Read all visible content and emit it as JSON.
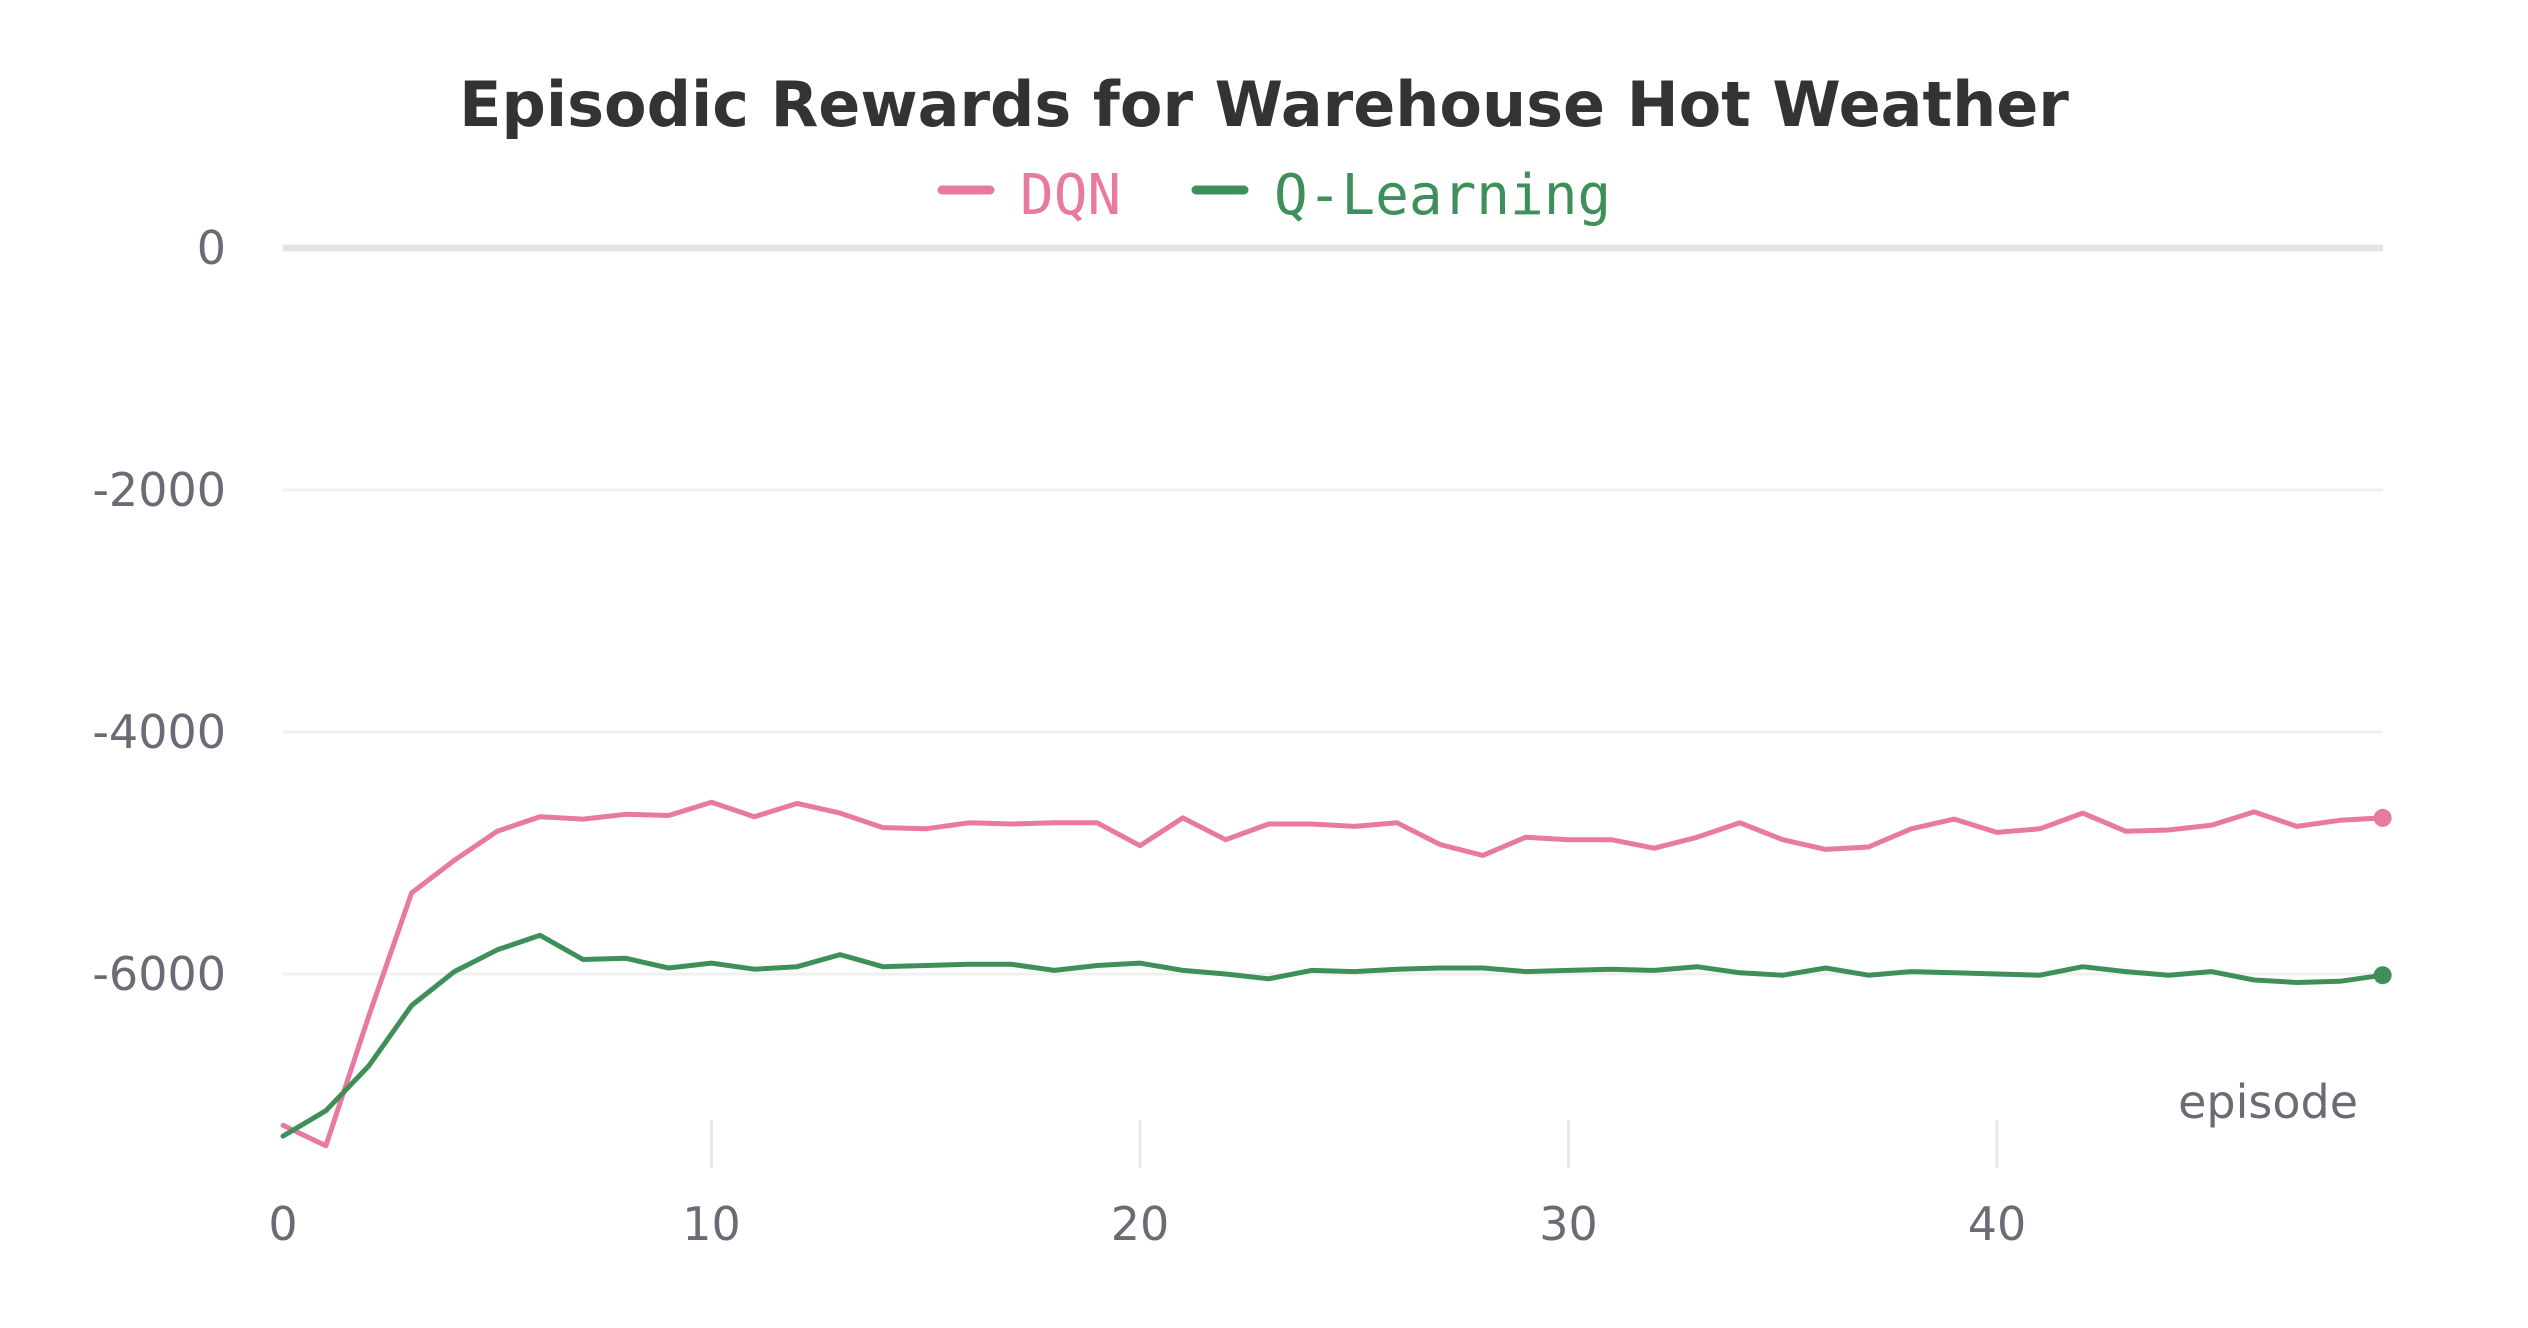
{
  "chart_data": {
    "type": "line",
    "title": "Episodic Rewards for Warehouse Hot Weather",
    "xlabel": "episode",
    "ylabel": "",
    "xlim": [
      0,
      49
    ],
    "ylim": [
      -7500,
      0
    ],
    "x_ticks": [
      0,
      10,
      20,
      30,
      40
    ],
    "y_ticks": [
      0,
      -2000,
      -4000,
      -6000
    ],
    "grid": true,
    "legend_position": "top-center",
    "x": [
      0,
      1,
      2,
      3,
      4,
      5,
      6,
      7,
      8,
      9,
      10,
      11,
      12,
      13,
      14,
      15,
      16,
      17,
      18,
      19,
      20,
      21,
      22,
      23,
      24,
      25,
      26,
      27,
      28,
      29,
      30,
      31,
      32,
      33,
      34,
      35,
      36,
      37,
      38,
      39,
      40,
      41,
      42,
      43,
      44,
      45,
      46,
      47,
      48,
      49
    ],
    "series": [
      {
        "name": "DQN",
        "color": "#e8799f",
        "values": [
          -7250,
          -7420,
          -6350,
          -5330,
          -5060,
          -4820,
          -4700,
          -4720,
          -4680,
          -4690,
          -4580,
          -4700,
          -4590,
          -4670,
          -4790,
          -4800,
          -4750,
          -4760,
          -4750,
          -4750,
          -4940,
          -4710,
          -4890,
          -4760,
          -4760,
          -4780,
          -4750,
          -4930,
          -5020,
          -4870,
          -4890,
          -4890,
          -4960,
          -4870,
          -4750,
          -4890,
          -4970,
          -4950,
          -4800,
          -4720,
          -4830,
          -4800,
          -4670,
          -4820,
          -4810,
          -4770,
          -4660,
          -4780,
          -4730,
          -4710
        ]
      },
      {
        "name": "Q-Learning",
        "color": "#3f8f5b",
        "values": [
          -7340,
          -7130,
          -6760,
          -6260,
          -5980,
          -5800,
          -5680,
          -5880,
          -5870,
          -5950,
          -5910,
          -5960,
          -5940,
          -5840,
          -5940,
          -5930,
          -5920,
          -5920,
          -5970,
          -5930,
          -5910,
          -5970,
          -6000,
          -6040,
          -5970,
          -5980,
          -5960,
          -5950,
          -5950,
          -5980,
          -5970,
          -5960,
          -5970,
          -5940,
          -5990,
          -6010,
          -5950,
          -6010,
          -5980,
          -5990,
          -6000,
          -6010,
          -5940,
          -5980,
          -6010,
          -5980,
          -6050,
          -6070,
          -6060,
          -6010
        ]
      }
    ]
  }
}
